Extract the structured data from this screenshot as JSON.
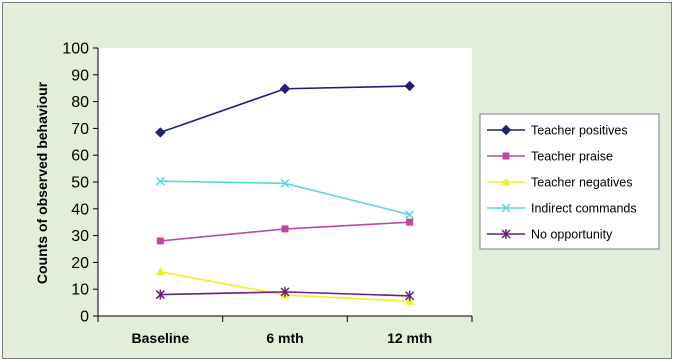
{
  "chart_data": {
    "type": "line",
    "title": "",
    "xlabel": "",
    "ylabel": "Counts of observed behaviour",
    "ylim": [
      0,
      100
    ],
    "yticks": [
      0,
      10,
      20,
      30,
      40,
      50,
      60,
      70,
      80,
      90,
      100
    ],
    "categories": [
      "Baseline",
      "6 mth",
      "12 mth"
    ],
    "grid": false,
    "legend_position": "right",
    "series": [
      {
        "name": "Teacher positives",
        "values": [
          68.5,
          84.8,
          85.8
        ],
        "color": "#1f1f7a",
        "marker": "diamond"
      },
      {
        "name": "Teacher praise",
        "values": [
          28,
          32.5,
          35
        ],
        "color": "#c0479d",
        "marker": "square"
      },
      {
        "name": "Teacher negatives",
        "values": [
          16.5,
          7.8,
          5.5
        ],
        "color": "#f2ee25",
        "marker": "triangle"
      },
      {
        "name": "Indirect commands",
        "values": [
          50.3,
          49.5,
          37.8
        ],
        "color": "#5fd2e6",
        "marker": "x"
      },
      {
        "name": "No opportunity",
        "values": [
          8,
          9,
          7.5
        ],
        "color": "#6a1f78",
        "marker": "star"
      }
    ]
  }
}
